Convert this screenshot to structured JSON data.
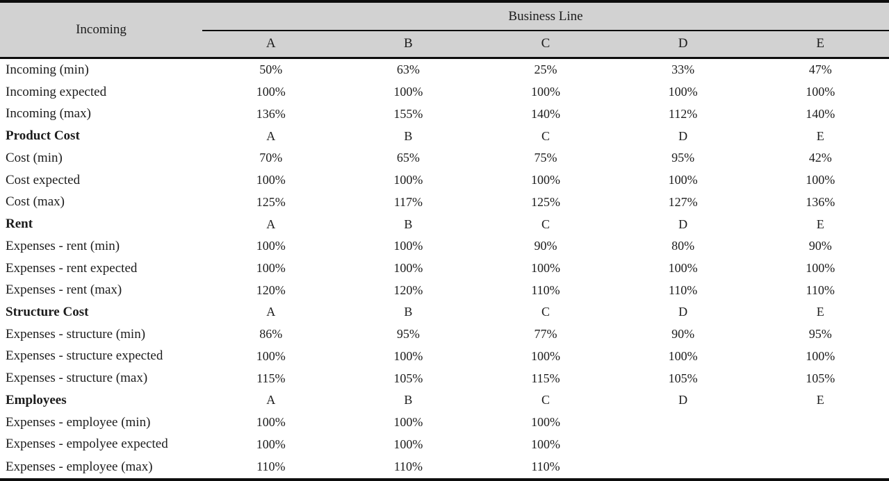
{
  "colors": {
    "header_bg": "#d2d2d2",
    "border": "#0d0d0d",
    "text": "#1c1c1c"
  },
  "table": {
    "header": {
      "incoming_label": "Incoming",
      "business_line_label": "Business Line",
      "columns": [
        "A",
        "B",
        "C",
        "D",
        "E"
      ]
    },
    "rows": [
      {
        "label": "Incoming (min)",
        "bold": false,
        "values": [
          "50%",
          "63%",
          "25%",
          "33%",
          "47%"
        ]
      },
      {
        "label": "Incoming expected",
        "bold": false,
        "values": [
          "100%",
          "100%",
          "100%",
          "100%",
          "100%"
        ]
      },
      {
        "label": "Incoming (max)",
        "bold": false,
        "values": [
          "136%",
          "155%",
          "140%",
          "112%",
          "140%"
        ]
      },
      {
        "label": "Product Cost",
        "bold": true,
        "values": [
          "A",
          "B",
          "C",
          "D",
          "E"
        ]
      },
      {
        "label": "Cost (min)",
        "bold": false,
        "values": [
          "70%",
          "65%",
          "75%",
          "95%",
          "42%"
        ]
      },
      {
        "label": "Cost expected",
        "bold": false,
        "values": [
          "100%",
          "100%",
          "100%",
          "100%",
          "100%"
        ]
      },
      {
        "label": "Cost (max)",
        "bold": false,
        "values": [
          "125%",
          "117%",
          "125%",
          "127%",
          "136%"
        ]
      },
      {
        "label": "Rent",
        "bold": true,
        "values": [
          "A",
          "B",
          "C",
          "D",
          "E"
        ]
      },
      {
        "label": "Expenses - rent (min)",
        "bold": false,
        "values": [
          "100%",
          "100%",
          "90%",
          "80%",
          "90%"
        ]
      },
      {
        "label": "Expenses - rent expected",
        "bold": false,
        "values": [
          "100%",
          "100%",
          "100%",
          "100%",
          "100%"
        ]
      },
      {
        "label": "Expenses - rent (max)",
        "bold": false,
        "values": [
          "120%",
          "120%",
          "110%",
          "110%",
          "110%"
        ]
      },
      {
        "label": "Structure Cost",
        "bold": true,
        "values": [
          "A",
          "B",
          "C",
          "D",
          "E"
        ]
      },
      {
        "label": "Expenses - structure (min)",
        "bold": false,
        "values": [
          "86%",
          "95%",
          "77%",
          "90%",
          "95%"
        ]
      },
      {
        "label": "Expenses - structure expected",
        "bold": false,
        "values": [
          "100%",
          "100%",
          "100%",
          "100%",
          "100%"
        ]
      },
      {
        "label": "Expenses - structure (max)",
        "bold": false,
        "values": [
          "115%",
          "105%",
          "115%",
          "105%",
          "105%"
        ]
      },
      {
        "label": "Employees",
        "bold": true,
        "values": [
          "A",
          "B",
          "C",
          "D",
          "E"
        ]
      },
      {
        "label": "Expenses - employee (min)",
        "bold": false,
        "values": [
          "100%",
          "100%",
          "100%",
          "",
          ""
        ]
      },
      {
        "label": "Expenses - empolyee expected",
        "bold": false,
        "values": [
          "100%",
          "100%",
          "100%",
          "",
          ""
        ]
      },
      {
        "label": "Expenses - employee (max)",
        "bold": false,
        "values": [
          "110%",
          "110%",
          "110%",
          "",
          ""
        ]
      }
    ]
  }
}
